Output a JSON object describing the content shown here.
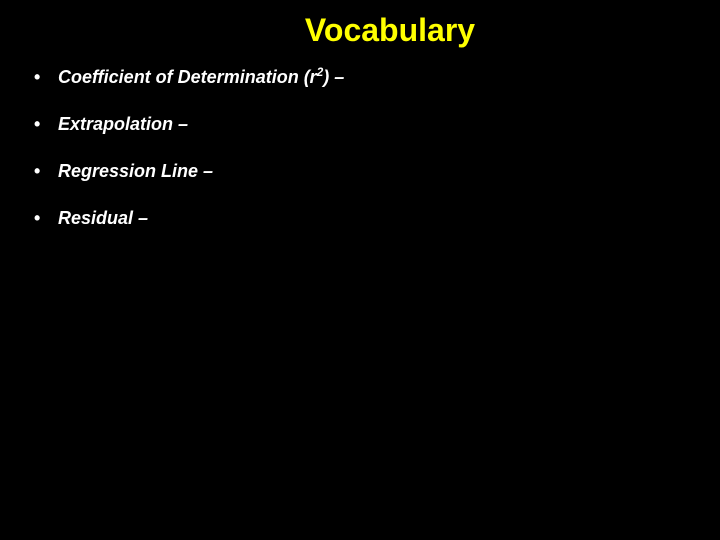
{
  "slide": {
    "title": "Vocabulary",
    "background_color": "#000000",
    "title_color": "#ffff00",
    "text_color": "#ffffff",
    "title_fontsize": 32,
    "bullet_fontsize": 18,
    "bullets": [
      {
        "term_prefix": "Coefficient of Determination (r",
        "superscript": "2",
        "term_suffix": ")",
        "dash": " –"
      },
      {
        "term_prefix": "Extrapolation",
        "superscript": "",
        "term_suffix": "",
        "dash": " –"
      },
      {
        "term_prefix": "Regression Line",
        "superscript": "",
        "term_suffix": "",
        "dash": " –"
      },
      {
        "term_prefix": "Residual",
        "superscript": "",
        "term_suffix": "",
        "dash": " –"
      }
    ]
  }
}
